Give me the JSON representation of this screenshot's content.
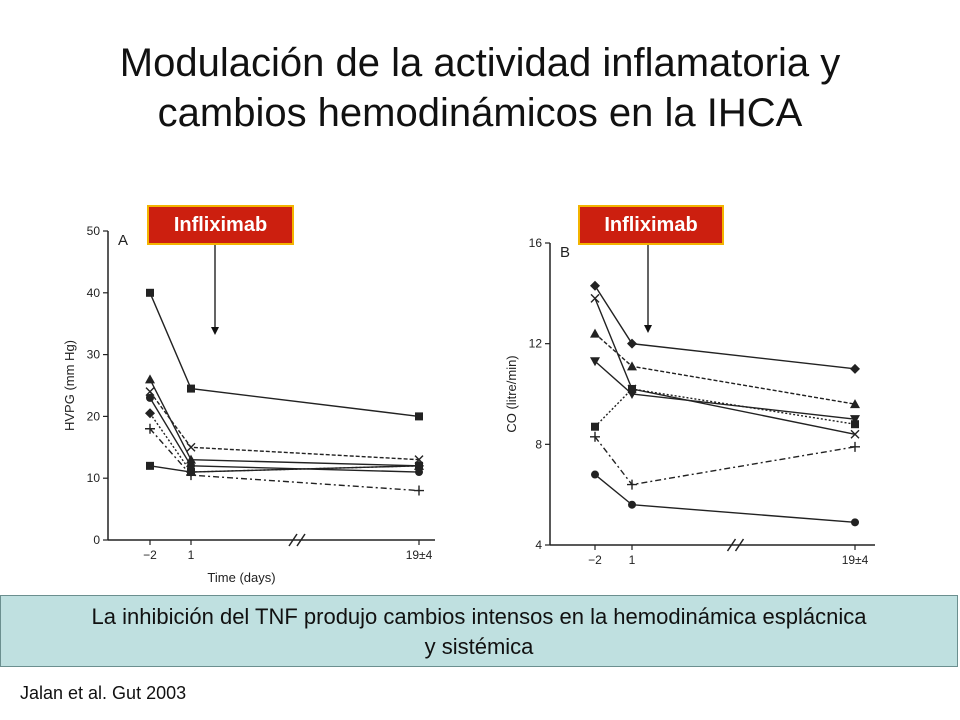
{
  "title_line1": "Modulación de la actividad inflamatoria y",
  "title_line2": "cambios hemodinámicos en la IHCA",
  "tag_left": "Infliximab",
  "tag_right": "Infliximab",
  "banner_line1": "La inhibición del TNF produjo cambios intensos en la hemodinámica esplácnica",
  "banner_line2": "y sistémica",
  "citation": "Jalan et al. Gut 2003",
  "colors": {
    "tag_bg": "#cc1f0f",
    "tag_border": "#f3b400",
    "banner_bg": "#bfe0e0"
  },
  "chart_data": [
    {
      "type": "line",
      "panel_label": "A",
      "xlabel": "Time (days)",
      "ylabel": "HVPG (mm Hg)",
      "categories": [
        "−2",
        "1",
        "19±4"
      ],
      "ylim": [
        0,
        50
      ],
      "yticks": [
        "0",
        "10",
        "20",
        "30",
        "40",
        "50"
      ],
      "series": [
        {
          "marker": "square",
          "values": [
            40,
            24.5,
            20
          ]
        },
        {
          "marker": "triangle",
          "values": [
            26,
            13,
            12
          ]
        },
        {
          "marker": "x",
          "values": [
            24,
            15,
            13
          ]
        },
        {
          "marker": "circle",
          "values": [
            23,
            12,
            11
          ]
        },
        {
          "marker": "diamond",
          "values": [
            20.5,
            11,
            12
          ]
        },
        {
          "marker": "plus",
          "values": [
            18,
            10.5,
            8
          ]
        },
        {
          "marker": "square",
          "values": [
            12,
            11,
            12
          ]
        }
      ]
    },
    {
      "type": "line",
      "panel_label": "B",
      "xlabel": "",
      "ylabel": "CO (litre/min)",
      "categories": [
        "−2",
        "1",
        "19±4"
      ],
      "ylim": [
        4,
        16
      ],
      "yticks": [
        "4",
        "8",
        "12",
        "16"
      ],
      "series": [
        {
          "marker": "diamond",
          "values": [
            14.3,
            12,
            11
          ]
        },
        {
          "marker": "x",
          "values": [
            13.8,
            10.2,
            8.4
          ]
        },
        {
          "marker": "triangle",
          "values": [
            12.4,
            11.1,
            9.6
          ]
        },
        {
          "marker": "triangle-down",
          "values": [
            11.3,
            10,
            9
          ]
        },
        {
          "marker": "square",
          "values": [
            8.7,
            10.2,
            8.8
          ]
        },
        {
          "marker": "plus",
          "values": [
            8.3,
            6.4,
            7.9
          ]
        },
        {
          "marker": "circle",
          "values": [
            6.8,
            5.6,
            4.9
          ]
        }
      ]
    }
  ]
}
